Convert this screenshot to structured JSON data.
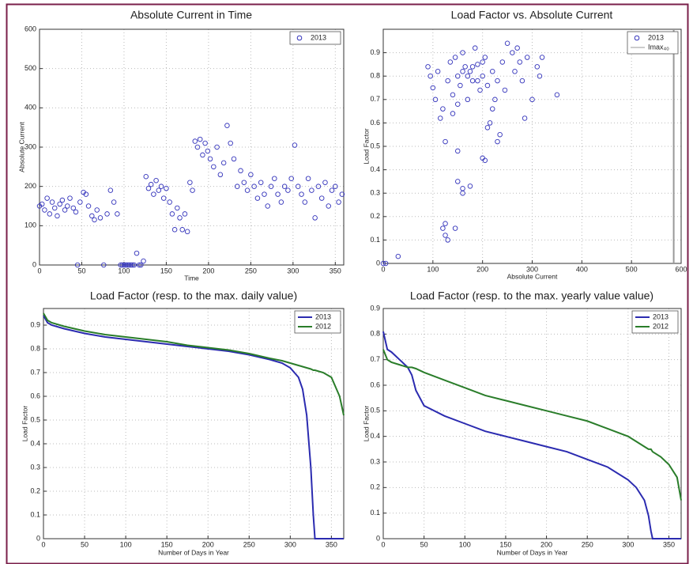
{
  "chart_data": [
    {
      "type": "scatter",
      "title": "Absolute Current in Time",
      "x_label": "Time",
      "y_label": "Absolute Current",
      "xlim": [
        0,
        360
      ],
      "ylim": [
        0,
        600
      ],
      "xticks": [
        0,
        50,
        100,
        150,
        200,
        250,
        300,
        350
      ],
      "yticks": [
        0,
        100,
        200,
        300,
        400,
        500,
        600
      ],
      "grid": true,
      "legend": "upper right",
      "series": [
        {
          "name": "2013",
          "color": "#3333bb",
          "x": [
            0,
            3,
            6,
            9,
            12,
            15,
            18,
            21,
            24,
            27,
            30,
            33,
            36,
            40,
            43,
            45,
            48,
            52,
            55,
            58,
            62,
            65,
            68,
            72,
            76,
            80,
            84,
            88,
            92,
            96,
            98,
            100,
            102,
            104,
            106,
            108,
            110,
            112,
            115,
            118,
            120,
            123,
            126,
            129,
            132,
            135,
            138,
            141,
            144,
            147,
            150,
            154,
            157,
            160,
            163,
            166,
            169,
            172,
            175,
            178,
            181,
            184,
            187,
            190,
            193,
            196,
            199,
            202,
            206,
            210,
            214,
            218,
            222,
            226,
            230,
            234,
            238,
            242,
            246,
            250,
            254,
            258,
            262,
            266,
            270,
            274,
            278,
            282,
            286,
            290,
            294,
            298,
            302,
            306,
            310,
            314,
            318,
            322,
            326,
            330,
            334,
            338,
            342,
            346,
            350,
            354,
            358
          ],
          "values": [
            150,
            155,
            140,
            170,
            130,
            160,
            145,
            125,
            155,
            165,
            140,
            150,
            170,
            145,
            135,
            0,
            160,
            185,
            180,
            150,
            125,
            115,
            140,
            120,
            0,
            130,
            190,
            160,
            130,
            0,
            0,
            0,
            0,
            0,
            0,
            0,
            0,
            0,
            30,
            0,
            0,
            10,
            225,
            195,
            205,
            180,
            215,
            190,
            200,
            170,
            195,
            160,
            130,
            90,
            145,
            120,
            90,
            130,
            85,
            210,
            190,
            315,
            300,
            320,
            280,
            310,
            290,
            270,
            250,
            300,
            230,
            260,
            355,
            310,
            270,
            200,
            240,
            210,
            190,
            230,
            200,
            170,
            210,
            180,
            150,
            200,
            220,
            180,
            160,
            200,
            190,
            220,
            305,
            200,
            180,
            160,
            220,
            190,
            120,
            200,
            170,
            210,
            150,
            190,
            200,
            160,
            180
          ]
        }
      ]
    },
    {
      "type": "scatter",
      "title": "Load Factor vs. Absolute Current",
      "x_label": "Absolute Current",
      "y_label": "Load Factor",
      "xlim": [
        0,
        600
      ],
      "ylim": [
        0,
        1
      ],
      "xticks": [
        0,
        100,
        200,
        300,
        400,
        500,
        600
      ],
      "yticks": [
        0,
        0.1,
        0.2,
        0.3,
        0.4,
        0.5,
        0.6,
        0.7,
        0.8,
        0.9
      ],
      "grid": true,
      "legend": "upper right",
      "series": [
        {
          "name": "2013",
          "color": "#3333bb",
          "x": [
            0,
            5,
            30,
            120,
            125,
            130,
            145,
            125,
            150,
            160,
            175,
            150,
            160,
            200,
            205,
            90,
            95,
            100,
            105,
            110,
            115,
            120,
            125,
            130,
            135,
            140,
            145,
            150,
            155,
            160,
            165,
            170,
            175,
            180,
            185,
            190,
            195,
            200,
            205,
            210,
            215,
            220,
            225,
            230,
            235,
            240,
            245,
            250,
            260,
            265,
            270,
            275,
            280,
            285,
            290,
            300,
            310,
            315,
            320,
            350,
            170,
            180,
            190,
            160,
            200,
            210,
            220,
            230,
            140,
            150
          ],
          "values": [
            0,
            0,
            0.03,
            0.15,
            0.12,
            0.1,
            0.15,
            0.17,
            0.35,
            0.32,
            0.33,
            0.48,
            0.3,
            0.45,
            0.44,
            0.84,
            0.8,
            0.75,
            0.7,
            0.82,
            0.62,
            0.66,
            0.52,
            0.78,
            0.86,
            0.72,
            0.88,
            0.8,
            0.76,
            0.9,
            0.84,
            0.7,
            0.82,
            0.78,
            0.92,
            0.85,
            0.74,
            0.8,
            0.88,
            0.76,
            0.6,
            0.82,
            0.7,
            0.78,
            0.55,
            0.86,
            0.74,
            0.94,
            0.9,
            0.82,
            0.92,
            0.86,
            0.78,
            0.62,
            0.88,
            0.7,
            0.84,
            0.8,
            0.88,
            0.72,
            0.8,
            0.84,
            0.78,
            0.82,
            0.86,
            0.58,
            0.66,
            0.52,
            0.64,
            0.68
          ]
        },
        {
          "name": "Imax₄₀",
          "color": "#999999",
          "marker": "line",
          "x": [
            585,
            585
          ],
          "values": [
            0,
            1
          ]
        }
      ]
    },
    {
      "type": "line",
      "title": "Load Factor (resp. to the max. daily value)",
      "x_label": "Number of Days in Year",
      "y_label": "Load Factor",
      "xlim": [
        0,
        365
      ],
      "ylim": [
        0,
        0.97
      ],
      "xticks": [
        0,
        50,
        100,
        150,
        200,
        250,
        300,
        350
      ],
      "yticks": [
        0,
        0.1,
        0.2,
        0.3,
        0.4,
        0.5,
        0.6,
        0.7,
        0.8,
        0.9
      ],
      "grid": true,
      "legend": "upper right",
      "x": [
        0,
        5,
        10,
        25,
        50,
        75,
        100,
        125,
        150,
        175,
        200,
        225,
        250,
        275,
        290,
        300,
        310,
        315,
        320,
        325,
        328,
        330,
        340,
        350,
        360,
        365
      ],
      "series": [
        {
          "name": "2013",
          "color": "#2b2bb0",
          "values": [
            0.94,
            0.91,
            0.9,
            0.885,
            0.865,
            0.85,
            0.84,
            0.83,
            0.82,
            0.81,
            0.8,
            0.79,
            0.775,
            0.755,
            0.74,
            0.72,
            0.68,
            0.63,
            0.52,
            0.3,
            0.1,
            0,
            0,
            0,
            0,
            0
          ]
        },
        {
          "name": "2012",
          "color": "#2a7d2a",
          "values": [
            0.95,
            0.92,
            0.91,
            0.895,
            0.875,
            0.86,
            0.85,
            0.84,
            0.83,
            0.815,
            0.805,
            0.795,
            0.78,
            0.76,
            0.75,
            0.74,
            0.73,
            0.725,
            0.72,
            0.715,
            0.71,
            0.71,
            0.7,
            0.68,
            0.6,
            0.52
          ]
        }
      ]
    },
    {
      "type": "line",
      "title": "Load Factor (resp. to the max. yearly value value)",
      "x_label": "Number of Days in Year",
      "y_label": "Load Factor",
      "xlim": [
        0,
        365
      ],
      "ylim": [
        0,
        0.9
      ],
      "xticks": [
        0,
        50,
        100,
        150,
        200,
        250,
        300,
        350
      ],
      "yticks": [
        0,
        0.1,
        0.2,
        0.3,
        0.4,
        0.5,
        0.6,
        0.7,
        0.8,
        0.9
      ],
      "grid": true,
      "legend": "upper right",
      "x": [
        0,
        5,
        10,
        20,
        30,
        35,
        40,
        50,
        75,
        100,
        125,
        150,
        175,
        200,
        225,
        250,
        275,
        300,
        310,
        320,
        325,
        328,
        330,
        340,
        350,
        360,
        365
      ],
      "series": [
        {
          "name": "2013",
          "color": "#2b2bb0",
          "values": [
            0.81,
            0.74,
            0.73,
            0.7,
            0.67,
            0.64,
            0.58,
            0.52,
            0.48,
            0.45,
            0.42,
            0.4,
            0.38,
            0.36,
            0.34,
            0.31,
            0.28,
            0.23,
            0.2,
            0.15,
            0.09,
            0.03,
            0,
            0,
            0,
            0,
            0
          ]
        },
        {
          "name": "2012",
          "color": "#2a7d2a",
          "values": [
            0.74,
            0.7,
            0.69,
            0.68,
            0.67,
            0.67,
            0.665,
            0.65,
            0.62,
            0.59,
            0.56,
            0.54,
            0.52,
            0.5,
            0.48,
            0.46,
            0.43,
            0.4,
            0.38,
            0.36,
            0.35,
            0.35,
            0.34,
            0.32,
            0.29,
            0.24,
            0.15
          ]
        }
      ]
    }
  ]
}
